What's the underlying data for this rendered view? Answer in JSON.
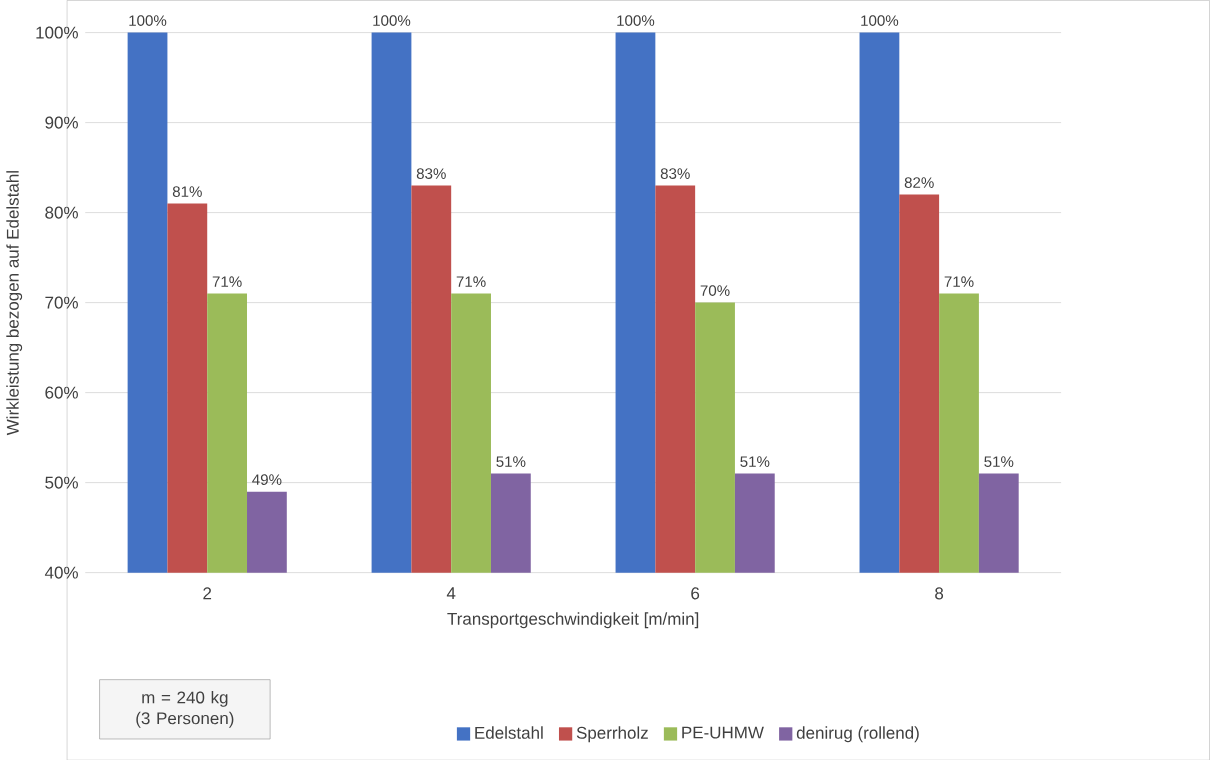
{
  "chart_data": {
    "type": "bar",
    "xlabel": "Transportgeschwindigkeit [m/min]",
    "ylabel": "Wirkleistung bezogen auf Edelstahl",
    "categories": [
      "2",
      "4",
      "6",
      "8"
    ],
    "series": [
      {
        "name": "Edelstahl",
        "color": "#4472c4",
        "values": [
          100,
          100,
          100,
          100
        ],
        "value_labels": [
          "100%",
          "100%",
          "100%",
          "100%"
        ]
      },
      {
        "name": "Sperrholz",
        "color": "#c0504d",
        "values": [
          81,
          83,
          83,
          82
        ],
        "value_labels": [
          "81%",
          "83%",
          "83%",
          "82%"
        ]
      },
      {
        "name": "PE-UHMW",
        "color": "#9bbb59",
        "values": [
          71,
          71,
          70,
          71
        ],
        "value_labels": [
          "71%",
          "71%",
          "70%",
          "71%"
        ]
      },
      {
        "name": "denirug (rollend)",
        "color": "#8064a2",
        "values": [
          49,
          51,
          51,
          51
        ],
        "value_labels": [
          "49%",
          "51%",
          "51%",
          "51%"
        ]
      }
    ],
    "ylim": [
      40,
      100
    ],
    "yticks": [
      {
        "value": 40,
        "label": "40%"
      },
      {
        "value": 50,
        "label": "50%"
      },
      {
        "value": 60,
        "label": "60%"
      },
      {
        "value": 70,
        "label": "70%"
      },
      {
        "value": 80,
        "label": "80%"
      },
      {
        "value": 90,
        "label": "90%"
      },
      {
        "value": 100,
        "label": "100%"
      }
    ],
    "grid": "y",
    "legend": "bottom",
    "annotations": [
      "m = 240 kg (3 Personen)"
    ]
  }
}
